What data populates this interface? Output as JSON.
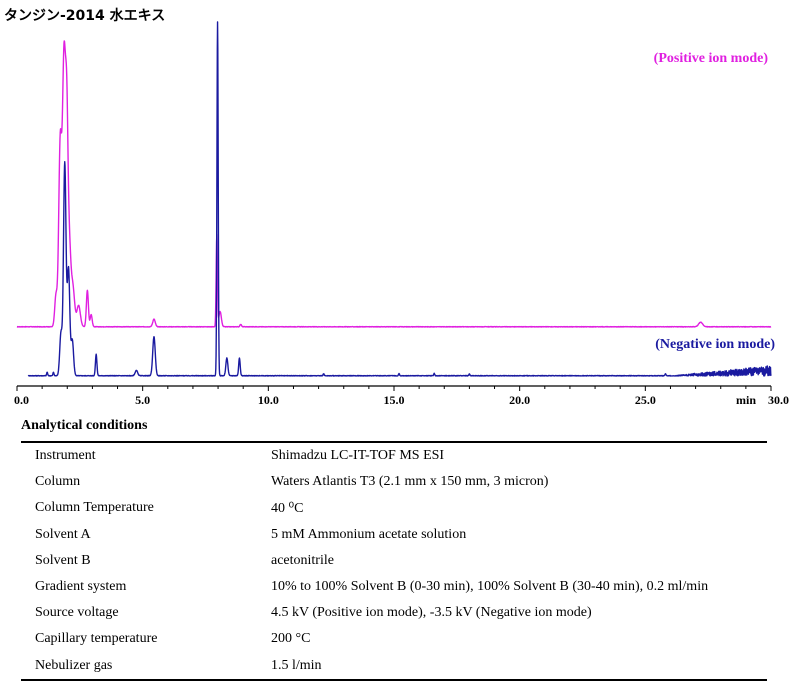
{
  "chart_data": {
    "type": "line",
    "title": "タンジン-2014 水エキス",
    "xlabel": "min",
    "xlim": [
      0,
      30
    ],
    "x_ticks": [
      "0.0",
      "5.0",
      "10.0",
      "15.0",
      "20.0",
      "25.0",
      "30.0"
    ],
    "grid": false,
    "series": [
      {
        "name": "(Positive ion mode)",
        "color": "#e020e0",
        "peaks": [
          {
            "x": 1.55,
            "h": 0.1,
            "w": 0.05
          },
          {
            "x": 1.72,
            "h": 0.6,
            "w": 0.06
          },
          {
            "x": 1.87,
            "h": 0.85,
            "w": 0.06
          },
          {
            "x": 1.98,
            "h": 0.6,
            "w": 0.05
          },
          {
            "x": 2.08,
            "h": 0.25,
            "w": 0.06
          },
          {
            "x": 2.22,
            "h": 0.13,
            "w": 0.07
          },
          {
            "x": 2.45,
            "h": 0.07,
            "w": 0.07
          },
          {
            "x": 2.8,
            "h": 0.12,
            "w": 0.04
          },
          {
            "x": 2.95,
            "h": 0.04,
            "w": 0.04
          },
          {
            "x": 5.45,
            "h": 0.025,
            "w": 0.05
          },
          {
            "x": 7.95,
            "h": 0.3,
            "w": 0.025
          },
          {
            "x": 8.08,
            "h": 0.05,
            "w": 0.05
          },
          {
            "x": 8.9,
            "h": 0.008,
            "w": 0.03
          },
          {
            "x": 27.2,
            "h": 0.015,
            "w": 0.08
          }
        ]
      },
      {
        "name": "(Negative ion mode)",
        "color": "#1a1aa0",
        "peaks": [
          {
            "x": 1.2,
            "h": 0.01,
            "w": 0.02
          },
          {
            "x": 1.45,
            "h": 0.01,
            "w": 0.02
          },
          {
            "x": 1.75,
            "h": 0.12,
            "w": 0.05
          },
          {
            "x": 1.9,
            "h": 0.6,
            "w": 0.05
          },
          {
            "x": 2.05,
            "h": 0.3,
            "w": 0.05
          },
          {
            "x": 2.2,
            "h": 0.1,
            "w": 0.05
          },
          {
            "x": 3.15,
            "h": 0.06,
            "w": 0.03
          },
          {
            "x": 4.75,
            "h": 0.015,
            "w": 0.05
          },
          {
            "x": 5.45,
            "h": 0.11,
            "w": 0.05
          },
          {
            "x": 7.98,
            "h": 1.0,
            "w": 0.025
          },
          {
            "x": 8.35,
            "h": 0.05,
            "w": 0.04
          },
          {
            "x": 8.85,
            "h": 0.05,
            "w": 0.03
          },
          {
            "x": 12.2,
            "h": 0.006,
            "w": 0.02
          },
          {
            "x": 15.2,
            "h": 0.006,
            "w": 0.02
          },
          {
            "x": 16.6,
            "h": 0.007,
            "w": 0.02
          },
          {
            "x": 18.0,
            "h": 0.005,
            "w": 0.02
          },
          {
            "x": 25.8,
            "h": 0.006,
            "w": 0.02
          }
        ],
        "noise_region": {
          "x": [
            26.0,
            30.0
          ],
          "h": 0.03
        }
      }
    ]
  },
  "conditions": {
    "heading": "Analytical conditions",
    "rows": [
      {
        "param": "Instrument",
        "value": "Shimadzu LC-IT-TOF MS ESI"
      },
      {
        "param": "Column",
        "value": "Waters Atlantis T3 (2.1 mm x 150 mm, 3 micron)"
      },
      {
        "param": "Column Temperature",
        "value": "40 ⁰C"
      },
      {
        "param": "Solvent A",
        "value": "5 mM Ammonium acetate solution"
      },
      {
        "param": "Solvent B",
        "value": "acetonitrile"
      },
      {
        "param": "Gradient system",
        "value": "10% to 100% Solvent B (0-30 min), 100% Solvent B (30-40 min), 0.2 ml/min"
      },
      {
        "param": "Source voltage",
        "value": "4.5 kV (Positive ion mode), -3.5 kV (Negative ion mode)"
      },
      {
        "param": "Capillary temperature",
        "value": "200 °C"
      },
      {
        "param": "Nebulizer gas",
        "value": "1.5 l/min"
      }
    ]
  }
}
